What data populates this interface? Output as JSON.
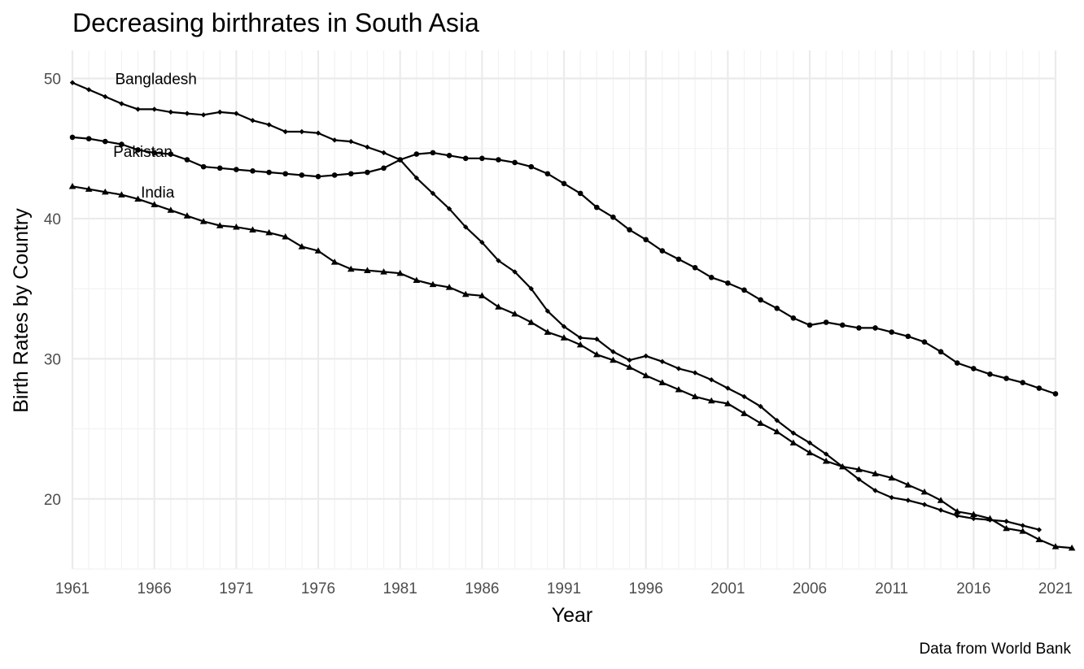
{
  "chart_data": {
    "type": "line",
    "title": "Decreasing birthrates in South Asia",
    "xlabel": "Year",
    "ylabel": "Birth Rates by Country",
    "caption": "Data from World Bank",
    "xlim": [
      1961,
      2021
    ],
    "ylim": [
      15,
      52
    ],
    "x_ticks": [
      1961,
      1966,
      1971,
      1976,
      1981,
      1986,
      1991,
      1996,
      2001,
      2006,
      2011,
      2016,
      2021
    ],
    "y_ticks": [
      20,
      30,
      40,
      50
    ],
    "grid": true,
    "legend": "none",
    "series": [
      {
        "name": "Bangladesh",
        "marker": "diamond",
        "label_at": [
          1966.1,
          50.0
        ],
        "x_start": 1961,
        "values": [
          49.7,
          49.2,
          48.7,
          48.2,
          47.8,
          47.8,
          47.6,
          47.5,
          47.4,
          47.6,
          47.5,
          47.0,
          46.7,
          46.2,
          46.2,
          46.1,
          45.6,
          45.5,
          45.1,
          44.7,
          44.2,
          42.9,
          41.8,
          40.7,
          39.4,
          38.3,
          37.0,
          36.2,
          35.0,
          33.4,
          32.3,
          31.5,
          31.4,
          30.5,
          29.9,
          30.2,
          29.8,
          29.3,
          29.0,
          28.5,
          27.9,
          27.3,
          26.6,
          25.6,
          24.7,
          24.0,
          23.2,
          22.3,
          21.4,
          20.6,
          20.1,
          19.9,
          19.6,
          19.2,
          18.8,
          18.6,
          18.5,
          18.4,
          18.1,
          17.8
        ]
      },
      {
        "name": "Pakistan",
        "marker": "circle",
        "label_at": [
          1965.3,
          44.8
        ],
        "x_start": 1961,
        "values": [
          45.8,
          45.7,
          45.5,
          45.3,
          44.9,
          44.7,
          44.6,
          44.2,
          43.7,
          43.6,
          43.5,
          43.4,
          43.3,
          43.2,
          43.1,
          43.0,
          43.1,
          43.2,
          43.3,
          43.6,
          44.2,
          44.6,
          44.7,
          44.5,
          44.3,
          44.3,
          44.2,
          44.0,
          43.7,
          43.2,
          42.5,
          41.8,
          40.8,
          40.1,
          39.2,
          38.5,
          37.7,
          37.1,
          36.5,
          35.8,
          35.4,
          34.9,
          34.2,
          33.6,
          32.9,
          32.4,
          32.6,
          32.4,
          32.2,
          32.2,
          31.9,
          31.6,
          31.2,
          30.5,
          29.7,
          29.3,
          28.9,
          28.6,
          28.3,
          27.9,
          27.5
        ]
      },
      {
        "name": "India",
        "marker": "triangle",
        "label_at": [
          1966.2,
          41.9
        ],
        "x_start": 1961,
        "values": [
          42.3,
          42.1,
          41.9,
          41.7,
          41.4,
          41.0,
          40.6,
          40.2,
          39.8,
          39.5,
          39.4,
          39.2,
          39.0,
          38.7,
          38.0,
          37.7,
          36.9,
          36.4,
          36.3,
          36.2,
          36.1,
          35.6,
          35.3,
          35.1,
          34.6,
          34.5,
          33.7,
          33.2,
          32.6,
          31.9,
          31.5,
          31.0,
          30.3,
          29.9,
          29.4,
          28.8,
          28.3,
          27.8,
          27.3,
          27.0,
          26.8,
          26.1,
          25.4,
          24.8,
          24.0,
          23.3,
          22.7,
          22.3,
          22.1,
          21.8,
          21.5,
          21.0,
          20.5,
          19.9,
          19.1,
          18.9,
          18.6,
          17.9,
          17.7,
          17.1,
          16.6,
          16.5
        ]
      }
    ]
  }
}
